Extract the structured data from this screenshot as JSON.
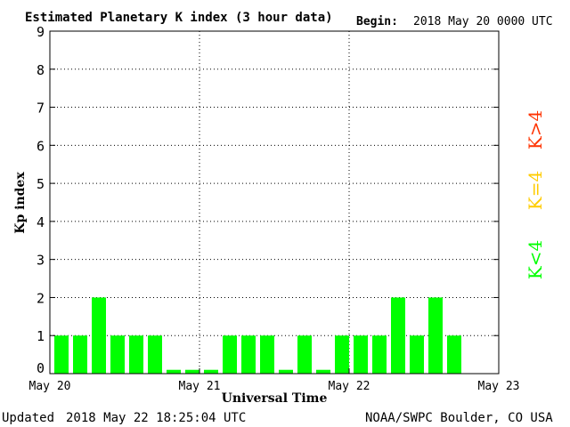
{
  "header": {
    "title": "Estimated Planetary K index (3 hour data)",
    "begin_label": "Begin:",
    "begin_value": "2018 May 20 0000 UTC"
  },
  "footer": {
    "updated_label": "Updated",
    "updated_value": "2018 May 22 18:25:04 UTC",
    "source": "NOAA/SWPC Boulder, CO USA"
  },
  "legend": {
    "above": "K>4",
    "equal": "K=4",
    "below": "K<4"
  },
  "colors": {
    "below": "#00ff00",
    "equal": "#ffcc00",
    "above": "#ff3300",
    "axis": "#000000",
    "grid": "#000000"
  },
  "chart_data": {
    "type": "bar",
    "title": "Estimated Planetary K index (3 hour data)",
    "xlabel": "Universal Time",
    "ylabel": "Kp index",
    "ylim": [
      0,
      9
    ],
    "yticks": [
      0,
      1,
      2,
      3,
      4,
      5,
      6,
      7,
      8,
      9
    ],
    "xticks": [
      "May 20",
      "May 21",
      "May 22",
      "May 23"
    ],
    "grid": "dotted at day boundaries and integer Kp levels",
    "interval_hours": 3,
    "values": [
      1,
      1,
      2,
      1,
      1,
      1,
      0.1,
      0.1,
      0.1,
      1,
      1,
      1,
      0.1,
      1,
      0.1,
      1,
      1,
      1,
      2,
      1,
      2,
      1
    ]
  }
}
